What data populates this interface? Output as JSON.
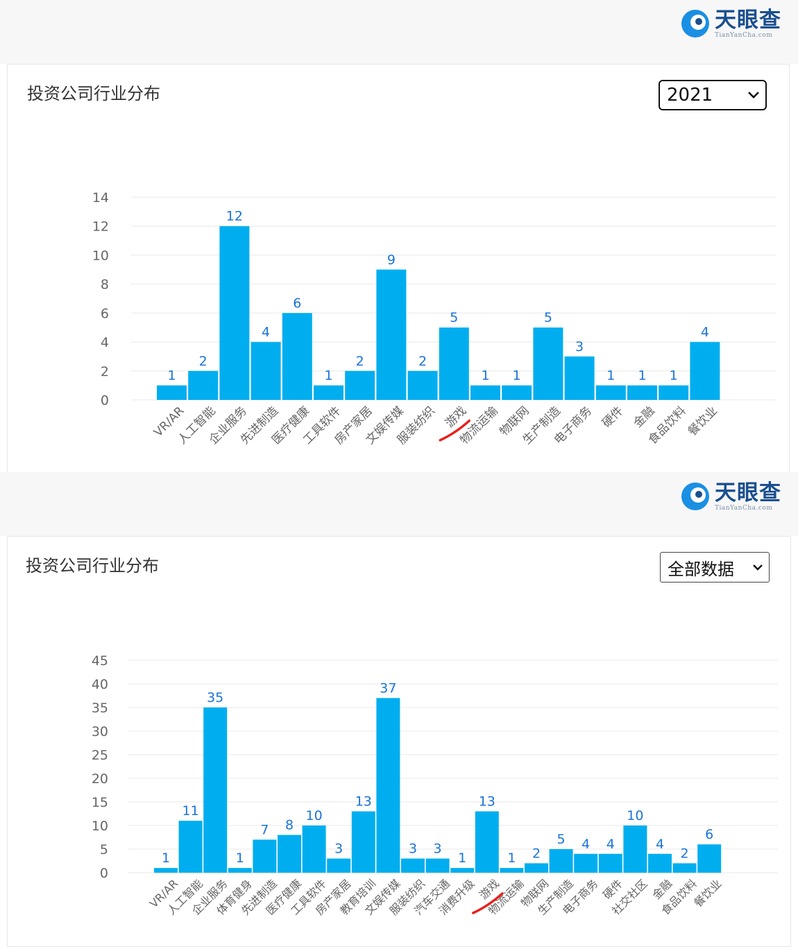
{
  "brand": {
    "name": "天眼查",
    "domain": "TianYanCha.com"
  },
  "colors": {
    "bar": "#00aeef",
    "value_label": "#1a73d9",
    "axis_text": "#666666",
    "grid": "#e8e8e8",
    "annotation": "#e8201c"
  },
  "panels": [
    {
      "title": "投资公司行业分布",
      "select_value": "2021"
    },
    {
      "title": "投资公司行业分布",
      "select_value": "全部数据"
    }
  ],
  "chart_data": [
    {
      "type": "bar",
      "title": "投资公司行业分布",
      "ylim": [
        0,
        14
      ],
      "yticks": [
        0,
        2,
        4,
        6,
        8,
        10,
        12,
        14
      ],
      "grid": true,
      "categories": [
        "VR/AR",
        "人工智能",
        "企业服务",
        "先进制造",
        "医疗健康",
        "工具软件",
        "房产家居",
        "文娱传媒",
        "服装纺织",
        "游戏",
        "物流运输",
        "物联网",
        "生产制造",
        "电子商务",
        "硬件",
        "金融",
        "食品饮料",
        "餐饮业"
      ],
      "values": [
        1,
        2,
        12,
        4,
        6,
        1,
        2,
        9,
        2,
        5,
        1,
        1,
        5,
        3,
        1,
        1,
        1,
        4
      ],
      "annotation": {
        "type": "hand-drawn-underline",
        "category": "游戏",
        "color": "#e8201c"
      }
    },
    {
      "type": "bar",
      "title": "投资公司行业分布",
      "ylim": [
        0,
        45
      ],
      "yticks": [
        0,
        5,
        10,
        15,
        20,
        25,
        30,
        35,
        40,
        45
      ],
      "grid": true,
      "categories": [
        "VR/AR",
        "人工智能",
        "企业服务",
        "体育健身",
        "先进制造",
        "医疗健康",
        "工具软件",
        "房产家居",
        "教育培训",
        "文娱传媒",
        "服装纺织",
        "汽车交通",
        "消费升级",
        "游戏",
        "物流运输",
        "物联网",
        "生产制造",
        "电子商务",
        "硬件",
        "社交社区",
        "金融",
        "食品饮料",
        "餐饮业"
      ],
      "values": [
        1,
        11,
        35,
        1,
        7,
        8,
        10,
        3,
        13,
        37,
        3,
        3,
        1,
        13,
        1,
        2,
        5,
        4,
        4,
        10,
        4,
        2,
        6
      ],
      "annotation": {
        "type": "hand-drawn-underline",
        "category": "游戏",
        "color": "#e8201c"
      }
    }
  ]
}
